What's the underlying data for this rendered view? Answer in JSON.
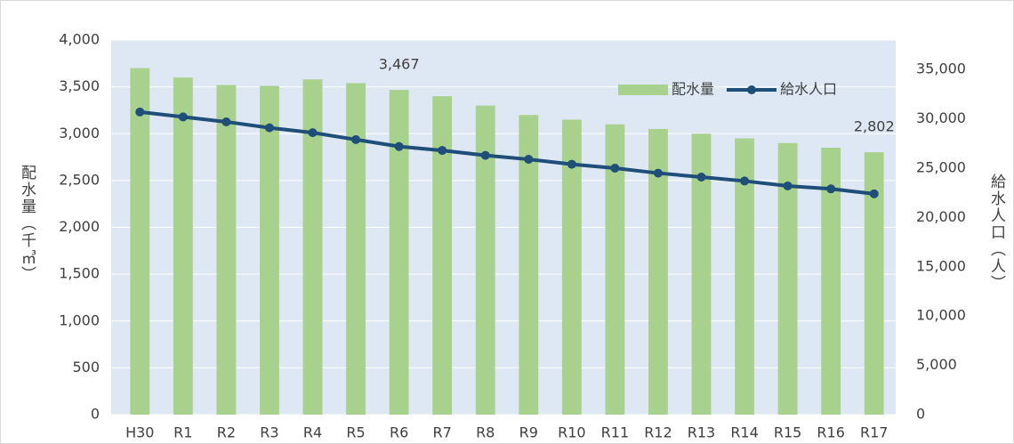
{
  "chart_data": {
    "type": "bar_line",
    "categories": [
      "H30",
      "R1",
      "R2",
      "R3",
      "R4",
      "R5",
      "R6",
      "R7",
      "R8",
      "R9",
      "R10",
      "R11",
      "R12",
      "R13",
      "R14",
      "R15",
      "R16",
      "R17"
    ],
    "series": [
      {
        "name": "配水量",
        "type": "bar",
        "color": "#a9d18e",
        "values": [
          3700,
          3600,
          3520,
          3510,
          3580,
          3540,
          3467,
          3400,
          3300,
          3200,
          3150,
          3100,
          3050,
          3000,
          2950,
          2900,
          2850,
          2802
        ],
        "value_labels": [
          null,
          null,
          null,
          null,
          null,
          null,
          "3,467",
          null,
          null,
          null,
          null,
          null,
          null,
          null,
          null,
          null,
          null,
          "2,802"
        ]
      },
      {
        "name": "給水人口",
        "type": "line",
        "axis": "y2",
        "color": "#1f4e79",
        "values": [
          30700,
          30200,
          29700,
          29100,
          28600,
          27900,
          27200,
          26800,
          26300,
          25900,
          25400,
          25000,
          24500,
          24100,
          23700,
          23200,
          22900,
          22400
        ]
      }
    ],
    "ylabel": "配水量（千㎥）",
    "y2label": "給水人口（人）",
    "ylim": [
      0,
      4000
    ],
    "yticks": [
      0,
      500,
      {
        "value": 1000,
        "label": "1,000"
      },
      {
        "value": 1500,
        "label": "1,500"
      },
      {
        "value": 2000,
        "label": "2,000"
      },
      {
        "value": 2500,
        "label": "2,500"
      },
      {
        "value": 3000,
        "label": "3,000"
      },
      {
        "value": 3500,
        "label": "3,500"
      },
      {
        "value": 4000,
        "label": "4,000"
      }
    ],
    "y2lim": [
      0,
      38000
    ],
    "y2ticks": [
      0,
      {
        "value": 5000,
        "label": "5,000"
      },
      {
        "value": 10000,
        "label": "10,000"
      },
      {
        "value": 15000,
        "label": "15,000"
      },
      {
        "value": 20000,
        "label": "20,000"
      },
      {
        "value": 25000,
        "label": "25,000"
      },
      {
        "value": 30000,
        "label": "30,000"
      },
      {
        "value": 35000,
        "label": "35,000"
      }
    ],
    "grid": true,
    "legend": "upper right",
    "background": "#dde8f4"
  }
}
